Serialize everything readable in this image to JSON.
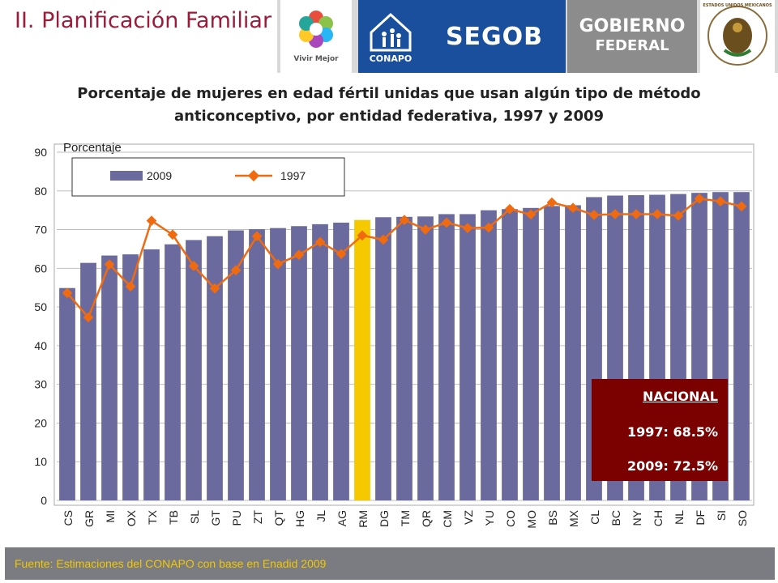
{
  "header": {
    "section_title": "II. Planificación Familiar",
    "logos": {
      "vivir": "Vivir Mejor",
      "conapo": "CONAPO",
      "segob": "SEGOB",
      "gobierno_1": "GOBIERNO",
      "gobierno_2": "FEDERAL",
      "escudo": "ESTADOS UNIDOS MEXICANOS"
    }
  },
  "nacional": {
    "title": "NACIONAL",
    "line_1997": "1997: 68.5%",
    "line_2009": "2009: 72.5%"
  },
  "footer": {
    "source": "Fuente: Estimaciones del CONAPO con base en Enadid 2009"
  },
  "colors": {
    "bar": "#6a6a9e",
    "bar_highlight": "#f5c800",
    "line": "#f06a10",
    "title_accent": "#9b1b3a",
    "nacional_bg": "#7b0000"
  },
  "chart_data": {
    "type": "bar",
    "title": "Porcentaje de mujeres en edad fértil unidas que usan algún tipo de método anticonceptivo, por entidad federativa, 1997 y 2009",
    "ylabel": "Porcentaje",
    "xlabel": "",
    "ylim": [
      0,
      90
    ],
    "yticks": [
      0,
      10,
      20,
      30,
      40,
      50,
      60,
      70,
      80,
      90
    ],
    "grid": true,
    "legend_position": "top-left",
    "highlight_category": "RM",
    "categories": [
      "CS",
      "GR",
      "MI",
      "OX",
      "TX",
      "TB",
      "SL",
      "GT",
      "PU",
      "ZT",
      "QT",
      "HG",
      "JL",
      "AG",
      "RM",
      "DG",
      "TM",
      "QR",
      "CM",
      "VZ",
      "YU",
      "CO",
      "MO",
      "BS",
      "MX",
      "CL",
      "BC",
      "NY",
      "CH",
      "NL",
      "DF",
      "SI",
      "SO"
    ],
    "series": [
      {
        "name": "2009",
        "type": "bar",
        "values": [
          54.9,
          61.4,
          63.3,
          63.6,
          64.9,
          66.2,
          67.3,
          68.3,
          69.8,
          70.1,
          70.4,
          70.9,
          71.4,
          71.8,
          72.5,
          73.2,
          73.3,
          73.4,
          74.0,
          74.0,
          75.0,
          75.3,
          75.6,
          76.1,
          76.3,
          78.4,
          78.8,
          78.9,
          79.0,
          79.2,
          79.5,
          79.7,
          79.7
        ]
      },
      {
        "name": "1997",
        "type": "line",
        "values": [
          53.6,
          47.3,
          61.0,
          55.3,
          72.3,
          68.7,
          60.6,
          54.8,
          59.5,
          68.3,
          61.1,
          63.5,
          66.8,
          63.7,
          68.5,
          67.4,
          72.5,
          70.0,
          71.8,
          70.4,
          70.5,
          75.3,
          73.9,
          77.0,
          75.6,
          73.8,
          74.0,
          74.0,
          74.0,
          73.6,
          78.0,
          77.3,
          76.0
        ]
      }
    ]
  }
}
